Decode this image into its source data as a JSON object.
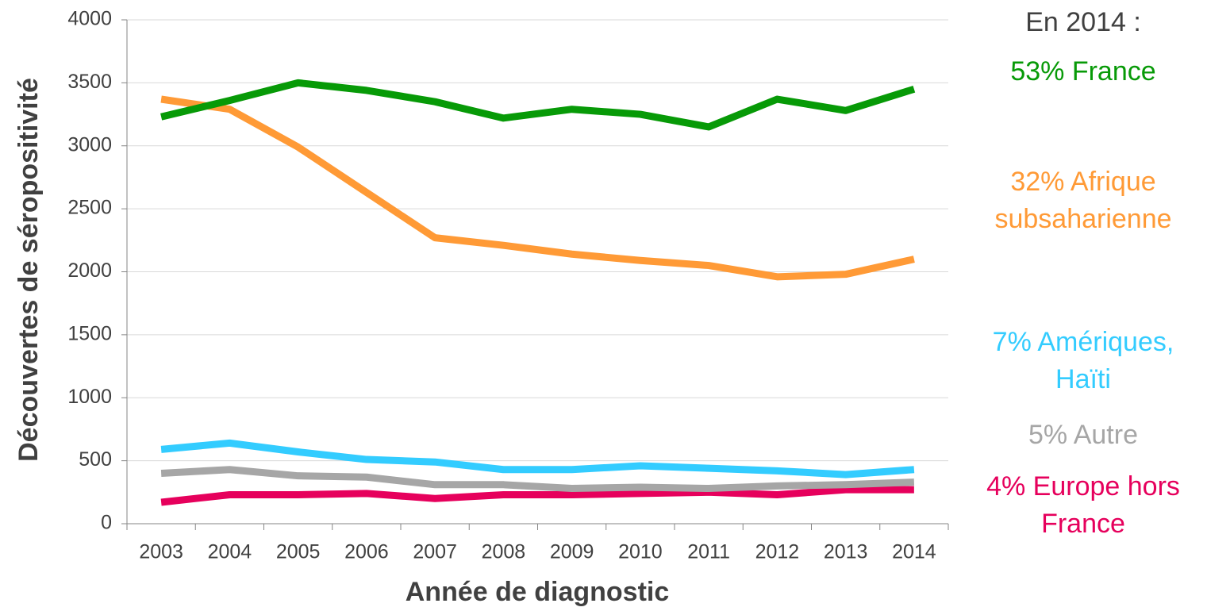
{
  "chart_data": {
    "type": "line",
    "annotation_title": "En 2014 :",
    "xlabel": "Année de diagnostic",
    "ylabel": "Découvertes de séropositivité",
    "categories": [
      "2003",
      "2004",
      "2005",
      "2006",
      "2007",
      "2008",
      "2009",
      "2010",
      "2011",
      "2012",
      "2013",
      "2014"
    ],
    "series": [
      {
        "name": "53% France",
        "color": "#079a07",
        "values": [
          3230,
          3360,
          3500,
          3440,
          3350,
          3220,
          3290,
          3250,
          3150,
          3370,
          3280,
          3450
        ]
      },
      {
        "name": "32% Afrique subsaharienne",
        "color": "#ff9a36",
        "values": [
          3370,
          3290,
          2990,
          2630,
          2270,
          2210,
          2140,
          2090,
          2050,
          1960,
          1980,
          2100
        ]
      },
      {
        "name": "7% Amériques, Haïti",
        "color": "#33ccff",
        "values": [
          590,
          640,
          570,
          510,
          490,
          430,
          430,
          460,
          440,
          420,
          390,
          430
        ]
      },
      {
        "name": "5% Autre",
        "color": "#a6a6a6",
        "values": [
          400,
          430,
          380,
          370,
          310,
          310,
          280,
          290,
          280,
          300,
          310,
          330
        ]
      },
      {
        "name": "4% Europe hors France",
        "color": "#e6005c",
        "values": [
          170,
          230,
          230,
          240,
          200,
          230,
          230,
          240,
          250,
          230,
          270,
          270
        ]
      }
    ],
    "ylim": [
      0,
      4000
    ],
    "yticks": [
      0,
      500,
      1000,
      1500,
      2000,
      2500,
      3000,
      3500,
      4000
    ],
    "grid": true
  }
}
